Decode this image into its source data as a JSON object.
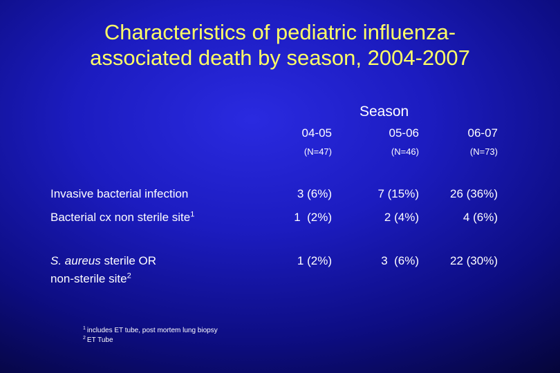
{
  "title": {
    "line1": "Characteristics of pediatric influenza-",
    "line2": "associated death by season,  2004-2007"
  },
  "table": {
    "group_header": "Season",
    "columns": [
      {
        "label": "04-05",
        "n": "(N=47)"
      },
      {
        "label": "05-06",
        "n": "(N=46)"
      },
      {
        "label": "06-07",
        "n": "(N=73)"
      }
    ],
    "rows": [
      {
        "label": "Invasive bacterial infection",
        "values": [
          "3 (6%)",
          "7 (15%)",
          "26 (36%)"
        ]
      },
      {
        "label": "Bacterial cx non sterile site",
        "footnote_ref": "1",
        "values": [
          "1  (2%)",
          "2 (4%)",
          "4 (6%)"
        ]
      },
      {
        "label_italic": "S. aureus",
        "label_rest": " sterile OR",
        "label_line2": "non-sterile site",
        "footnote_ref": "2",
        "values": [
          "1 (2%)",
          "3  (6%)",
          "22 (30%)"
        ]
      }
    ]
  },
  "footnotes": [
    {
      "mark": "1",
      "text": "includes ET tube, post mortem lung biopsy"
    },
    {
      "mark": "2",
      "text": "ET Tube"
    }
  ]
}
